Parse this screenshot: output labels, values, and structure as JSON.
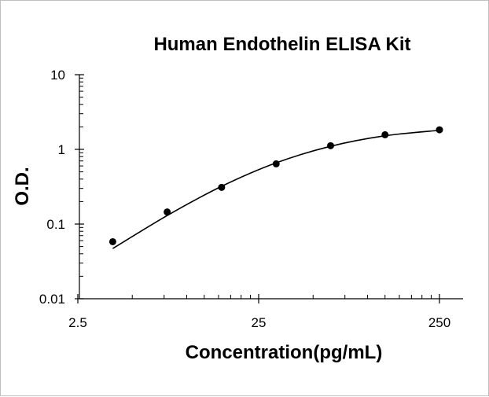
{
  "chart_data": {
    "type": "scatter",
    "title": "Human Endothelin  ELISA Kit",
    "xlabel": "Concentration(pg/mL)",
    "ylabel": "O.D.",
    "x_scale": "log",
    "y_scale": "log",
    "xlim": [
      2.5,
      250
    ],
    "ylim": [
      0.01,
      10
    ],
    "x_tick_labels": [
      "2.5",
      "25",
      "250"
    ],
    "y_tick_labels": [
      "0.01",
      "0.1",
      "1",
      "10"
    ],
    "grid": false,
    "legend": "none",
    "points": [
      {
        "x": 3.9,
        "y": 0.058
      },
      {
        "x": 7.8,
        "y": 0.145
      },
      {
        "x": 15.6,
        "y": 0.31
      },
      {
        "x": 31.25,
        "y": 0.64
      },
      {
        "x": 62.5,
        "y": 1.12
      },
      {
        "x": 125,
        "y": 1.57
      },
      {
        "x": 250,
        "y": 1.83
      }
    ],
    "fit_curve": [
      {
        "x": 3.9,
        "y": 0.047
      },
      {
        "x": 7.8,
        "y": 0.13
      },
      {
        "x": 15.6,
        "y": 0.32
      },
      {
        "x": 31.25,
        "y": 0.66
      },
      {
        "x": 62.5,
        "y": 1.1
      },
      {
        "x": 125,
        "y": 1.52
      },
      {
        "x": 250,
        "y": 1.8
      }
    ],
    "colors": {
      "point": "#000000",
      "line": "#000000",
      "axis": "#000000"
    }
  }
}
